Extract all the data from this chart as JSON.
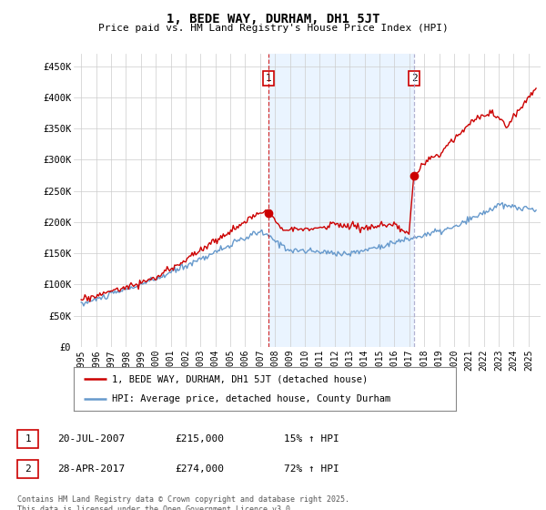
{
  "title": "1, BEDE WAY, DURHAM, DH1 5JT",
  "subtitle": "Price paid vs. HM Land Registry's House Price Index (HPI)",
  "ylabel_ticks": [
    "£0",
    "£50K",
    "£100K",
    "£150K",
    "£200K",
    "£250K",
    "£300K",
    "£350K",
    "£400K",
    "£450K"
  ],
  "ytick_values": [
    0,
    50000,
    100000,
    150000,
    200000,
    250000,
    300000,
    350000,
    400000,
    450000
  ],
  "ylim": [
    0,
    470000
  ],
  "xlim_start": 1994.5,
  "xlim_end": 2025.8,
  "sale1_x": 2007.55,
  "sale1_y": 215000,
  "sale2_x": 2017.33,
  "sale2_y": 274000,
  "ann_y": 430000,
  "legend_line1": "1, BEDE WAY, DURHAM, DH1 5JT (detached house)",
  "legend_line2": "HPI: Average price, detached house, County Durham",
  "table_row1": [
    "1",
    "20-JUL-2007",
    "£215,000",
    "15% ↑ HPI"
  ],
  "table_row2": [
    "2",
    "28-APR-2017",
    "£274,000",
    "72% ↑ HPI"
  ],
  "footer": "Contains HM Land Registry data © Crown copyright and database right 2025.\nThis data is licensed under the Open Government Licence v3.0.",
  "color_red": "#cc0000",
  "color_blue": "#6699cc",
  "color_shade": "#ddeeff",
  "color_grid": "#cccccc",
  "color_vline2": "#aaaacc",
  "background": "#ffffff"
}
